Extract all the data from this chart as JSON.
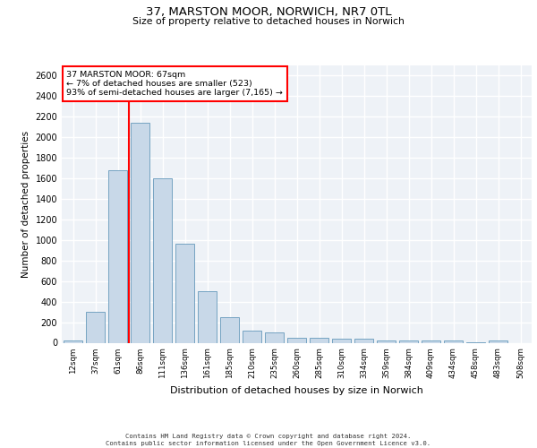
{
  "title_line1": "37, MARSTON MOOR, NORWICH, NR7 0TL",
  "title_line2": "Size of property relative to detached houses in Norwich",
  "xlabel": "Distribution of detached houses by size in Norwich",
  "ylabel": "Number of detached properties",
  "bar_labels": [
    "12sqm",
    "37sqm",
    "61sqm",
    "86sqm",
    "111sqm",
    "136sqm",
    "161sqm",
    "185sqm",
    "210sqm",
    "235sqm",
    "260sqm",
    "285sqm",
    "310sqm",
    "334sqm",
    "359sqm",
    "384sqm",
    "409sqm",
    "434sqm",
    "458sqm",
    "483sqm",
    "508sqm"
  ],
  "bar_values": [
    25,
    300,
    1680,
    2140,
    1595,
    960,
    505,
    250,
    120,
    100,
    50,
    50,
    35,
    35,
    20,
    25,
    20,
    20,
    5,
    25,
    0
  ],
  "bar_color": "#c8d8e8",
  "bar_edge_color": "#6699bb",
  "red_line_x": 2.5,
  "annotation_text": "37 MARSTON MOOR: 67sqm\n← 7% of detached houses are smaller (523)\n93% of semi-detached houses are larger (7,165) →",
  "annotation_box_color": "white",
  "annotation_box_edgecolor": "red",
  "ylim": [
    0,
    2700
  ],
  "yticks": [
    0,
    200,
    400,
    600,
    800,
    1000,
    1200,
    1400,
    1600,
    1800,
    2000,
    2200,
    2400,
    2600
  ],
  "background_color": "#eef2f7",
  "grid_color": "white",
  "footer_line1": "Contains HM Land Registry data © Crown copyright and database right 2024.",
  "footer_line2": "Contains public sector information licensed under the Open Government Licence v3.0."
}
